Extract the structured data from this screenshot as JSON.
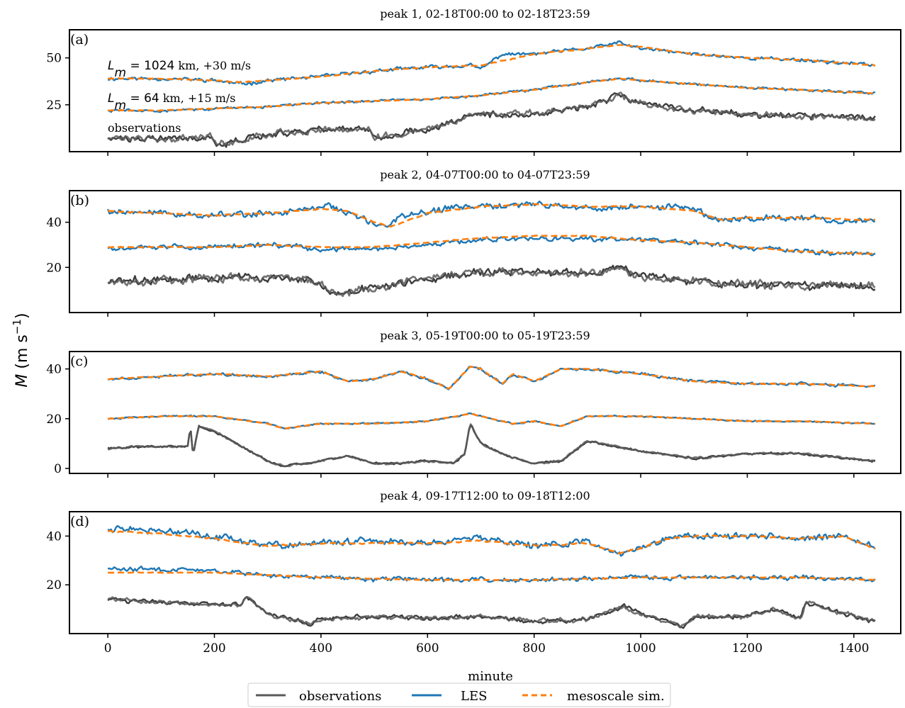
{
  "chart_data": [
    {
      "type": "line",
      "panel_label": "(a)",
      "title": "peak 1, 02-18T00:00 to 02-18T23:59",
      "ylim": [
        0,
        65
      ],
      "yticks": [
        25,
        50
      ],
      "xlim": [
        -72,
        1488
      ],
      "xticks": [
        0,
        200,
        400,
        600,
        800,
        1000,
        1200,
        1400
      ],
      "annotations": [
        {
          "math": "L_m = 1024",
          "text": " km, +30 m/s"
        },
        {
          "math": "L_m = 64",
          "text": " km, +15 m/s"
        },
        {
          "math": "",
          "text": "observations"
        }
      ],
      "series": [
        {
          "name": "LES",
          "role": "les_top",
          "x": [
            0,
            100,
            200,
            250,
            300,
            400,
            500,
            600,
            680,
            700,
            740,
            800,
            900,
            960,
            1000,
            1100,
            1200,
            1300,
            1440
          ],
          "y": [
            39,
            39,
            38,
            36,
            38,
            40,
            43,
            45,
            46,
            44,
            52,
            52,
            55,
            58,
            55,
            52,
            50,
            49,
            46
          ],
          "noise": 1.4
        },
        {
          "name": "mesoscale sim.",
          "role": "meso_top",
          "x": [
            0,
            100,
            200,
            250,
            300,
            400,
            500,
            600,
            700,
            800,
            900,
            960,
            1000,
            1100,
            1200,
            1300,
            1440
          ],
          "y": [
            39,
            39,
            38,
            37,
            38,
            40,
            43,
            45,
            46,
            52,
            55,
            57,
            56,
            52,
            50,
            49,
            46
          ],
          "noise": 0.3
        },
        {
          "name": "LES",
          "role": "les_mid",
          "x": [
            0,
            100,
            200,
            300,
            400,
            500,
            600,
            700,
            800,
            900,
            960,
            1000,
            1100,
            1200,
            1300,
            1440
          ],
          "y": [
            22,
            22,
            23,
            24,
            26,
            27,
            28,
            30,
            33,
            37,
            39,
            38,
            36,
            34,
            33,
            31
          ],
          "noise": 0.9
        },
        {
          "name": "mesoscale sim.",
          "role": "meso_mid",
          "x": [
            0,
            100,
            200,
            300,
            400,
            500,
            600,
            700,
            800,
            900,
            960,
            1000,
            1100,
            1200,
            1300,
            1440
          ],
          "y": [
            22,
            22,
            23,
            24,
            26,
            27,
            28,
            30,
            33,
            37,
            39,
            38,
            36,
            34,
            33,
            31
          ],
          "noise": 0.2
        },
        {
          "name": "observations",
          "role": "obs",
          "x": [
            0,
            100,
            195,
            200,
            215,
            225,
            240,
            300,
            400,
            490,
            500,
            600,
            680,
            720,
            800,
            900,
            960,
            1000,
            1100,
            1200,
            1300,
            1440
          ],
          "y": [
            7,
            7,
            8,
            5,
            4,
            4,
            6,
            9,
            12,
            12,
            8,
            12,
            19,
            20,
            20,
            24,
            30,
            26,
            22,
            20,
            19,
            18
          ],
          "noise": 2.5
        }
      ]
    },
    {
      "type": "line",
      "panel_label": "(b)",
      "title": "peak 2, 04-07T00:00 to 04-07T23:59",
      "ylim": [
        0,
        54
      ],
      "yticks": [
        20,
        40
      ],
      "xlim": [
        -72,
        1488
      ],
      "xticks": [
        0,
        200,
        400,
        600,
        800,
        1000,
        1200,
        1400
      ],
      "series": [
        {
          "name": "LES",
          "role": "les_top",
          "x": [
            0,
            100,
            200,
            300,
            400,
            410,
            450,
            500,
            520,
            550,
            600,
            700,
            800,
            900,
            1000,
            1100,
            1150,
            1200,
            1300,
            1440
          ],
          "y": [
            45,
            44,
            43,
            44,
            46,
            48,
            44,
            39,
            38,
            43,
            45,
            47,
            48,
            46,
            47,
            46,
            41,
            42,
            42,
            40
          ],
          "noise": 2.0
        },
        {
          "name": "mesoscale sim.",
          "role": "meso_top",
          "x": [
            0,
            100,
            200,
            300,
            400,
            450,
            500,
            530,
            600,
            700,
            800,
            900,
            1000,
            1100,
            1150,
            1200,
            1300,
            1440
          ],
          "y": [
            45,
            44,
            43,
            44,
            46,
            45,
            40,
            38,
            44,
            47,
            48,
            47,
            47,
            45,
            41,
            42,
            42,
            41
          ],
          "noise": 0.3
        },
        {
          "name": "LES",
          "role": "les_mid",
          "x": [
            0,
            100,
            200,
            300,
            400,
            500,
            600,
            700,
            800,
            900,
            1000,
            1100,
            1200,
            1300,
            1440
          ],
          "y": [
            28,
            29,
            29,
            30,
            28,
            28,
            30,
            32,
            33,
            33,
            32,
            31,
            29,
            27,
            26
          ],
          "noise": 1.6
        },
        {
          "name": "mesoscale sim.",
          "role": "meso_mid",
          "x": [
            0,
            100,
            200,
            300,
            400,
            500,
            600,
            700,
            800,
            900,
            1000,
            1100,
            1200,
            1300,
            1440
          ],
          "y": [
            29,
            29,
            29,
            30,
            29,
            29,
            31,
            33,
            34,
            34,
            32,
            31,
            29,
            27,
            26
          ],
          "noise": 0.2
        },
        {
          "name": "observations",
          "role": "obs",
          "x": [
            0,
            100,
            200,
            300,
            380,
            420,
            440,
            500,
            600,
            700,
            800,
            900,
            960,
            1000,
            1100,
            1200,
            1300,
            1440
          ],
          "y": [
            13,
            15,
            15,
            16,
            14,
            9,
            8,
            11,
            15,
            18,
            18,
            17,
            20,
            16,
            14,
            12,
            12,
            11
          ],
          "noise": 2.6
        }
      ]
    },
    {
      "type": "line",
      "panel_label": "(c)",
      "title": "peak 3, 05-19T00:00 to 05-19T23:59",
      "ylim": [
        -2,
        47
      ],
      "yticks": [
        0,
        20,
        40
      ],
      "xlim": [
        -72,
        1488
      ],
      "xticks": [
        0,
        200,
        400,
        600,
        800,
        1000,
        1200,
        1400
      ],
      "series": [
        {
          "name": "LES",
          "role": "les_top",
          "x": [
            0,
            100,
            200,
            300,
            350,
            400,
            450,
            500,
            550,
            600,
            640,
            680,
            700,
            740,
            760,
            800,
            850,
            900,
            950,
            1000,
            1100,
            1200,
            1300,
            1440
          ],
          "y": [
            36,
            37,
            38,
            37,
            38,
            39,
            35,
            36,
            39,
            36,
            32,
            41,
            40,
            34,
            38,
            35,
            40,
            40,
            39,
            38,
            35,
            34,
            34,
            33
          ],
          "noise": 0.8
        },
        {
          "name": "mesoscale sim.",
          "role": "meso_top",
          "x": [
            0,
            100,
            200,
            300,
            350,
            400,
            450,
            500,
            550,
            600,
            640,
            680,
            700,
            740,
            760,
            800,
            850,
            900,
            950,
            1000,
            1100,
            1200,
            1300,
            1440
          ],
          "y": [
            36,
            37,
            38,
            37,
            38,
            39,
            35,
            36,
            39,
            36,
            32,
            41,
            40,
            34,
            38,
            35,
            40,
            40,
            39,
            38,
            35,
            34,
            34,
            33
          ],
          "noise": 0.2
        },
        {
          "name": "LES",
          "role": "les_mid",
          "x": [
            0,
            100,
            200,
            300,
            330,
            400,
            500,
            600,
            680,
            700,
            760,
            800,
            850,
            900,
            1000,
            1100,
            1200,
            1300,
            1440
          ],
          "y": [
            20,
            21,
            21,
            18,
            16,
            18,
            18,
            19,
            22,
            21,
            18,
            19,
            17,
            21,
            21,
            20,
            19,
            19,
            18
          ],
          "noise": 0.4
        },
        {
          "name": "mesoscale sim.",
          "role": "meso_mid",
          "x": [
            0,
            100,
            200,
            300,
            330,
            400,
            500,
            600,
            680,
            700,
            760,
            800,
            850,
            900,
            1000,
            1100,
            1200,
            1300,
            1440
          ],
          "y": [
            20,
            21,
            21,
            18,
            16,
            18,
            18,
            19,
            22,
            21,
            18,
            19,
            17,
            21,
            21,
            20,
            19,
            19,
            18
          ],
          "noise": 0.1
        },
        {
          "name": "observations",
          "role": "obs",
          "x": [
            0,
            100,
            150,
            155,
            160,
            170,
            200,
            250,
            300,
            330,
            400,
            450,
            500,
            550,
            600,
            650,
            670,
            680,
            700,
            750,
            800,
            850,
            900,
            1000,
            1100,
            1200,
            1300,
            1440
          ],
          "y": [
            8,
            9,
            9,
            17,
            5,
            17,
            15,
            9,
            3,
            1,
            3,
            5,
            2,
            2,
            3,
            2,
            6,
            18,
            10,
            5,
            2,
            3,
            11,
            7,
            4,
            6,
            6,
            3
          ],
          "noise": 0.6
        }
      ]
    },
    {
      "type": "line",
      "panel_label": "(d)",
      "title": "peak 4, 09-17T12:00 to 09-18T12:00",
      "ylim": [
        0,
        50
      ],
      "yticks": [
        20,
        40
      ],
      "xlim": [
        -72,
        1488
      ],
      "xticks": [
        0,
        200,
        400,
        600,
        800,
        1000,
        1200,
        1400
      ],
      "series": [
        {
          "name": "LES",
          "role": "les_top",
          "x": [
            0,
            100,
            200,
            300,
            400,
            500,
            600,
            700,
            800,
            900,
            960,
            1000,
            1050,
            1100,
            1200,
            1300,
            1380,
            1440
          ],
          "y": [
            43,
            42,
            40,
            36,
            37,
            38,
            37,
            39,
            36,
            38,
            33,
            35,
            39,
            40,
            40,
            39,
            40,
            35
          ],
          "noise": 2.0
        },
        {
          "name": "mesoscale sim.",
          "role": "meso_top",
          "x": [
            0,
            100,
            200,
            300,
            400,
            500,
            600,
            700,
            800,
            900,
            960,
            1000,
            1050,
            1100,
            1200,
            1300,
            1380,
            1440
          ],
          "y": [
            42,
            41,
            39,
            36,
            37,
            37,
            37,
            38,
            36,
            37,
            33,
            35,
            39,
            40,
            40,
            39,
            40,
            35
          ],
          "noise": 0.4
        },
        {
          "name": "LES",
          "role": "les_mid",
          "x": [
            0,
            100,
            200,
            300,
            400,
            600,
            800,
            1000,
            1200,
            1300,
            1440
          ],
          "y": [
            27,
            26,
            26,
            24,
            23,
            22,
            22,
            23,
            23,
            23,
            22
          ],
          "noise": 1.4
        },
        {
          "name": "mesoscale sim.",
          "role": "meso_mid",
          "x": [
            0,
            100,
            200,
            300,
            400,
            600,
            800,
            1000,
            1200,
            1300,
            1440
          ],
          "y": [
            25,
            25,
            25,
            24,
            23,
            22,
            22,
            23,
            23,
            23,
            22
          ],
          "noise": 0.15
        },
        {
          "name": "observations",
          "role": "obs",
          "x": [
            0,
            100,
            200,
            250,
            260,
            300,
            380,
            400,
            500,
            600,
            700,
            800,
            900,
            970,
            1000,
            1080,
            1100,
            1200,
            1250,
            1300,
            1310,
            1400,
            1440
          ],
          "y": [
            14,
            13,
            12,
            12,
            15,
            8,
            4,
            6,
            7,
            6,
            7,
            5,
            6,
            11,
            8,
            3,
            7,
            7,
            10,
            6,
            13,
            7,
            5
          ],
          "noise": 1.3
        }
      ]
    }
  ],
  "xlabel": "minute",
  "ylabel": "M (m s⁻¹)",
  "legend": {
    "placement": "bottom-center",
    "entries": [
      {
        "name": "observations",
        "color": "#595959",
        "style": "solid"
      },
      {
        "name": "LES",
        "color": "#1f77b4",
        "style": "solid"
      },
      {
        "name": "mesoscale sim.",
        "color": "#ff7f0e",
        "style": "dashed"
      }
    ]
  },
  "colors": {
    "observations": "#595959",
    "observations_dark": "#1a1a1a",
    "les": "#1f77b4",
    "mesoscale": "#ff7f0e"
  }
}
